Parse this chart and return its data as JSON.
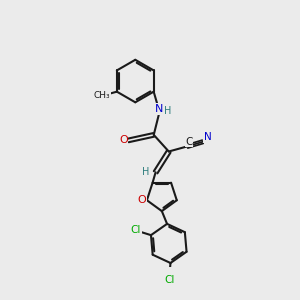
{
  "bg_color": "#ebebeb",
  "atom_colors": {
    "C": "#1a1a1a",
    "N": "#0000cc",
    "O": "#cc0000",
    "Cl": "#00aa00",
    "H": "#2d7d7d"
  },
  "bond_color": "#1a1a1a",
  "bond_lw": 1.5,
  "figsize": [
    3.0,
    3.0
  ],
  "dpi": 100
}
